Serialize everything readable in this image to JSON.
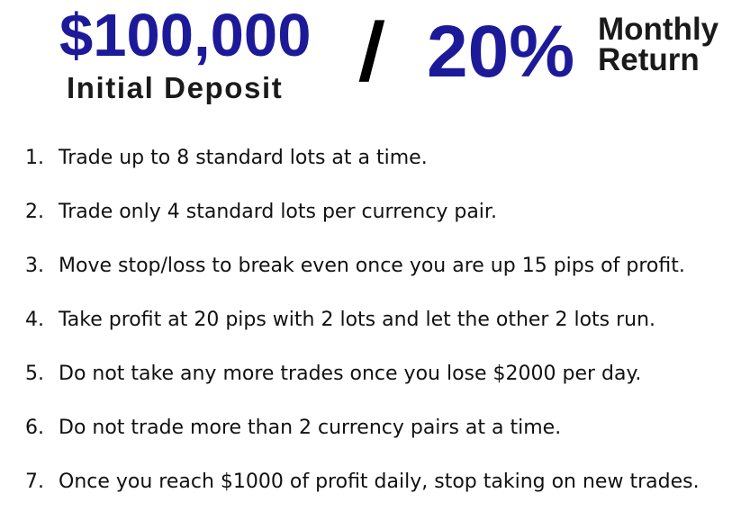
{
  "header": {
    "deposit_amount": "$100,000",
    "deposit_label": "Initial Deposit",
    "separator": "/",
    "return_percent": "20%",
    "return_label_line1": "Monthly",
    "return_label_line2": "Return"
  },
  "colors": {
    "accent_blue": "#1d1a9a",
    "text": "#111111"
  },
  "rules": [
    {
      "number": "1.",
      "text": "Trade up to 8 standard lots at a time."
    },
    {
      "number": "2.",
      "text": "Trade only 4 standard lots per currency pair."
    },
    {
      "number": "3.",
      "text": "Move stop/loss to break even once you are up 15 pips of profit."
    },
    {
      "number": "4.",
      "text": "Take profit at 20 pips with 2 lots and let the other 2 lots run."
    },
    {
      "number": "5.",
      "text": "Do not take any more trades once you lose $2000 per day."
    },
    {
      "number": "6.",
      "text": "Do not trade more than 2 currency pairs at a time."
    },
    {
      "number": "7.",
      "text": "Once you reach $1000 of profit daily, stop taking on new trades."
    }
  ]
}
